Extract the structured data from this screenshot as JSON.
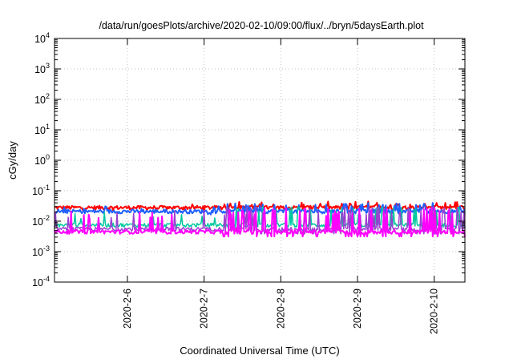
{
  "chart_data": {
    "type": "line",
    "title": "/data/run/goesPlots/archive/2020-02-10/09:00/flux/../bryn/5daysEarth.plot",
    "xlabel": "Coordinated Universal Time (UTC)",
    "ylabel": "cGy/day",
    "yscale": "log",
    "ylim": [
      0.0001,
      10000
    ],
    "xlim": [
      0,
      5.35
    ],
    "grid": true,
    "y_ticks": [
      {
        "value": 0.0001,
        "base": "10",
        "exp": "-4"
      },
      {
        "value": 0.001,
        "base": "10",
        "exp": "-3"
      },
      {
        "value": 0.01,
        "base": "10",
        "exp": "-2"
      },
      {
        "value": 0.1,
        "base": "10",
        "exp": "-1"
      },
      {
        "value": 1,
        "base": "10",
        "exp": "0"
      },
      {
        "value": 10,
        "base": "10",
        "exp": "1"
      },
      {
        "value": 100,
        "base": "10",
        "exp": "2"
      },
      {
        "value": 1000,
        "base": "10",
        "exp": "3"
      },
      {
        "value": 10000,
        "base": "10",
        "exp": "4"
      }
    ],
    "x_ticks": [
      {
        "value": 0.95,
        "label": "2020-2-6"
      },
      {
        "value": 1.95,
        "label": "2020-2-7"
      },
      {
        "value": 2.95,
        "label": "2020-2-8"
      },
      {
        "value": 3.95,
        "label": "2020-2-9"
      },
      {
        "value": 4.95,
        "label": "2020-2-10"
      }
    ],
    "series": [
      {
        "color": "#ff0000",
        "base": 0.028,
        "spikes": 0.045,
        "width": 2
      },
      {
        "color": "#1f5fff",
        "base": 0.021,
        "spikes": 0.04,
        "width": 2
      },
      {
        "color": "#00c8a0",
        "base": 0.0075,
        "spikes": 0.03,
        "width": 1.5
      },
      {
        "color": "#9b40d0",
        "base": 0.0055,
        "spikes": 0.03,
        "width": 1.5
      },
      {
        "color": "#ff00ff",
        "base": 0.0045,
        "spikes": 0.028,
        "width": 2
      }
    ]
  }
}
